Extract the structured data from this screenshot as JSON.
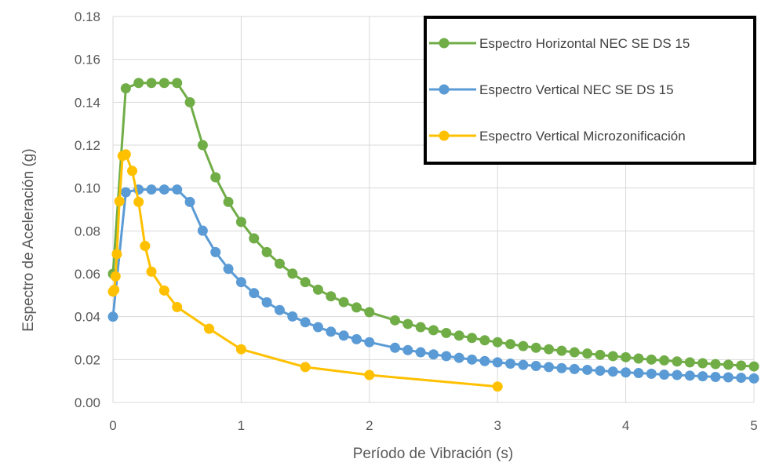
{
  "chart_data": {
    "type": "line",
    "title": "",
    "xlabel": "Período de Vibración (s)",
    "ylabel": "Espectro de Aceleración (g)",
    "xlim": [
      0,
      5
    ],
    "ylim": [
      0,
      0.18
    ],
    "xticks": [
      0,
      1,
      2,
      3,
      4,
      5
    ],
    "xtick_labels": [
      "0",
      "1",
      "2",
      "3",
      "4",
      "5"
    ],
    "yticks": [
      0,
      0.02,
      0.04,
      0.06,
      0.08,
      0.1,
      0.12,
      0.14,
      0.16,
      0.18
    ],
    "ytick_labels": [
      "0.00",
      "0.02",
      "0.04",
      "0.06",
      "0.08",
      "0.10",
      "0.12",
      "0.14",
      "0.16",
      "0.18"
    ],
    "grid": true,
    "legend_position": "top-right",
    "series": [
      {
        "name": "Espectro Horizontal NEC SE DS 15",
        "color": "#70ad47",
        "x": [
          0,
          0.1,
          0.2,
          0.3,
          0.4,
          0.5,
          0.6,
          0.7,
          0.8,
          0.9,
          1.0,
          1.1,
          1.2,
          1.3,
          1.4,
          1.5,
          1.6,
          1.7,
          1.8,
          1.9,
          2.0,
          2.2,
          2.3,
          2.4,
          2.5,
          2.6,
          2.7,
          2.8,
          2.9,
          3.0,
          3.1,
          3.2,
          3.3,
          3.4,
          3.5,
          3.6,
          3.7,
          3.8,
          3.9,
          4.0,
          4.1,
          4.2,
          4.3,
          4.4,
          4.5,
          4.6,
          4.7,
          4.8,
          4.9,
          5.0
        ],
        "y": [
          0.06,
          0.1465,
          0.149,
          0.149,
          0.149,
          0.149,
          0.14,
          0.12,
          0.105,
          0.0935,
          0.0842,
          0.0765,
          0.0701,
          0.0647,
          0.0601,
          0.0561,
          0.0526,
          0.0495,
          0.0468,
          0.0443,
          0.0421,
          0.0383,
          0.0366,
          0.0351,
          0.0337,
          0.0324,
          0.0312,
          0.0301,
          0.029,
          0.0281,
          0.0272,
          0.0263,
          0.0255,
          0.0248,
          0.0241,
          0.0234,
          0.0228,
          0.0222,
          0.0216,
          0.0211,
          0.0205,
          0.02,
          0.0196,
          0.0191,
          0.0187,
          0.0183,
          0.0179,
          0.0176,
          0.0172,
          0.0168
        ]
      },
      {
        "name": "Espectro Vertical NEC SE DS 15",
        "color": "#5b9bd5",
        "x": [
          0,
          0.1,
          0.2,
          0.3,
          0.4,
          0.5,
          0.6,
          0.7,
          0.8,
          0.9,
          1.0,
          1.1,
          1.2,
          1.3,
          1.4,
          1.5,
          1.6,
          1.7,
          1.8,
          1.9,
          2.0,
          2.2,
          2.3,
          2.4,
          2.5,
          2.6,
          2.7,
          2.8,
          2.9,
          3.0,
          3.1,
          3.2,
          3.3,
          3.4,
          3.5,
          3.6,
          3.7,
          3.8,
          3.9,
          4.0,
          4.1,
          4.2,
          4.3,
          4.4,
          4.5,
          4.6,
          4.7,
          4.8,
          4.9,
          5.0
        ],
        "y": [
          0.04,
          0.098,
          0.0993,
          0.0993,
          0.0993,
          0.0993,
          0.0935,
          0.0801,
          0.0701,
          0.0623,
          0.0561,
          0.051,
          0.0467,
          0.0431,
          0.0401,
          0.0374,
          0.0351,
          0.033,
          0.0312,
          0.0295,
          0.0281,
          0.0255,
          0.0244,
          0.0234,
          0.0224,
          0.0216,
          0.0208,
          0.02,
          0.0193,
          0.0187,
          0.0181,
          0.0175,
          0.017,
          0.0165,
          0.016,
          0.0156,
          0.0152,
          0.0148,
          0.0144,
          0.014,
          0.0137,
          0.0134,
          0.013,
          0.0128,
          0.0125,
          0.0122,
          0.0119,
          0.0117,
          0.0115,
          0.0112
        ]
      },
      {
        "name": "Espectro Vertical Microzonificación",
        "color": "#ffc000",
        "x": [
          0,
          0.01,
          0.02,
          0.03,
          0.05,
          0.075,
          0.1,
          0.15,
          0.2,
          0.25,
          0.3,
          0.4,
          0.5,
          0.75,
          1.0,
          1.5,
          2.0,
          3.0
        ],
        "y": [
          0.0517,
          0.0525,
          0.0588,
          0.0692,
          0.0938,
          0.115,
          0.1157,
          0.108,
          0.0935,
          0.073,
          0.061,
          0.0522,
          0.0445,
          0.0344,
          0.0248,
          0.0165,
          0.0128,
          0.0074
        ]
      }
    ]
  }
}
